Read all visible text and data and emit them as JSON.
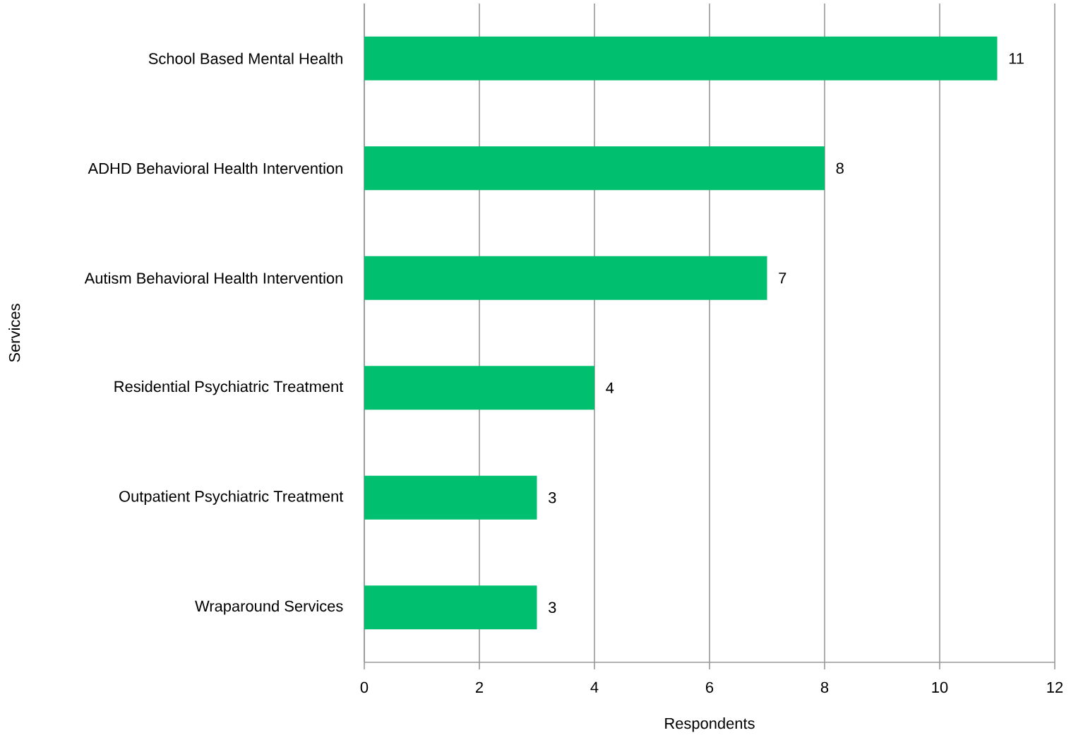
{
  "chart_data": {
    "type": "bar",
    "orientation": "horizontal",
    "xlabel": "Respondents",
    "ylabel": "Services",
    "categories": [
      "School Based Mental Health",
      "ADHD Behavioral Health Intervention",
      "Autism Behavioral Health Intervention",
      "Residential Psychiatric Treatment",
      "Outpatient Psychiatric Treatment",
      "Wraparound Services"
    ],
    "values": [
      11,
      8,
      7,
      4,
      3,
      3
    ],
    "color": "#00c070",
    "xlim": [
      0,
      12
    ],
    "xticks": [
      0,
      2,
      4,
      6,
      8,
      10,
      12
    ],
    "grid": "x",
    "data_labels": true
  }
}
